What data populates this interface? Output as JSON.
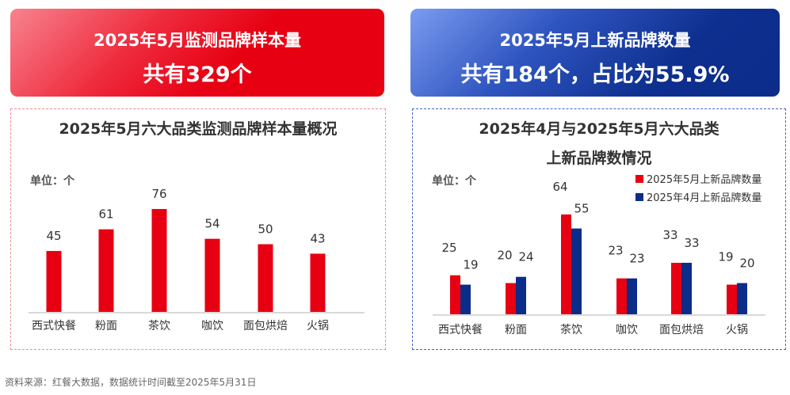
{
  "left_banner": {
    "line1": "2025年5月监测品牌样本量",
    "line2": "共有329个"
  },
  "right_banner": {
    "line1": "2025年5月上新品牌数量",
    "line2": "共有184个，占比为55.9%"
  },
  "colors": {
    "red": "#e60012",
    "blue": "#0c2c8a"
  },
  "chart_data": [
    {
      "type": "bar",
      "title": "2025年5月六大品类监测品牌样本量概况",
      "unit_label": "单位：个",
      "categories": [
        "西式快餐",
        "粉面",
        "茶饮",
        "咖饮",
        "面包烘焙",
        "火锅"
      ],
      "values": [
        45,
        61,
        76,
        54,
        50,
        43
      ],
      "grid": false
    },
    {
      "type": "bar",
      "title_line1": "2025年4月与2025年5月六大品类",
      "title_line2": "上新品牌数情况",
      "unit_label": "单位：个",
      "categories": [
        "西式快餐",
        "粉面",
        "茶饮",
        "咖饮",
        "面包烘焙",
        "火锅"
      ],
      "series": [
        {
          "name": "2025年5月上新品牌数量",
          "values": [
            25,
            20,
            64,
            23,
            33,
            19
          ]
        },
        {
          "name": "2025年4月上新品牌数量",
          "values": [
            19,
            24,
            55,
            23,
            33,
            20
          ]
        }
      ],
      "legend": "top-right",
      "grid": false
    }
  ],
  "footer": "资料来源：红餐大数据，数据统计时间截至2025年5月31日"
}
